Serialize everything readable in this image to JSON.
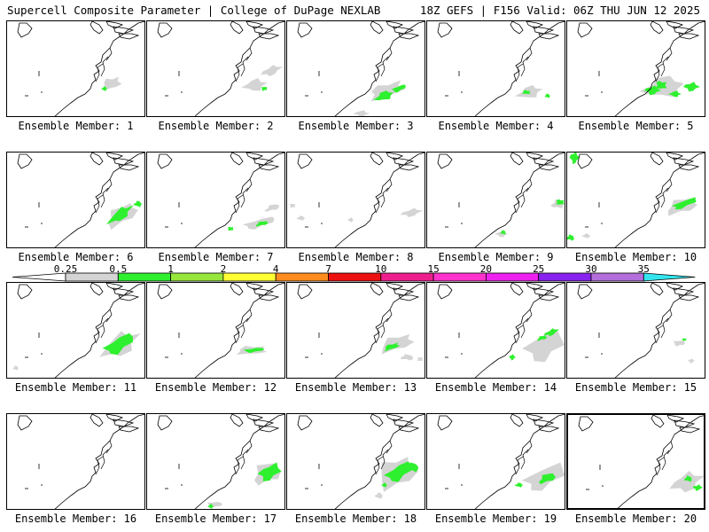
{
  "header": {
    "left": "Supercell Composite Parameter | College of DuPage NEXLAB",
    "right": "18Z GEFS | F156 Valid: 06Z THU JUN 12 2025"
  },
  "label_prefix": "Ensemble Member: ",
  "colorscale": {
    "thresholds": [
      "0.25",
      "0.5",
      "1",
      "2",
      "4",
      "7",
      "10",
      "15",
      "20",
      "25",
      "30",
      "35"
    ],
    "colors": [
      "#ffffff",
      "#d4d4d4",
      "#2ef02e",
      "#96e63c",
      "#ffff33",
      "#ff8c1e",
      "#ee1111",
      "#ee1e8c",
      "#ff33cc",
      "#ee22ee",
      "#8822ee",
      "#b46edc",
      "#33e6ee"
    ]
  },
  "members": [
    {
      "number": "1"
    },
    {
      "number": "2"
    },
    {
      "number": "3"
    },
    {
      "number": "4"
    },
    {
      "number": "5"
    },
    {
      "number": "6"
    },
    {
      "number": "7"
    },
    {
      "number": "8"
    },
    {
      "number": "9"
    },
    {
      "number": "10"
    },
    {
      "number": "11"
    },
    {
      "number": "12"
    },
    {
      "number": "13"
    },
    {
      "number": "14"
    },
    {
      "number": "15"
    },
    {
      "number": "16"
    },
    {
      "number": "17"
    },
    {
      "number": "18"
    },
    {
      "number": "19"
    },
    {
      "number": "20"
    }
  ],
  "highlighted_member": "20"
}
